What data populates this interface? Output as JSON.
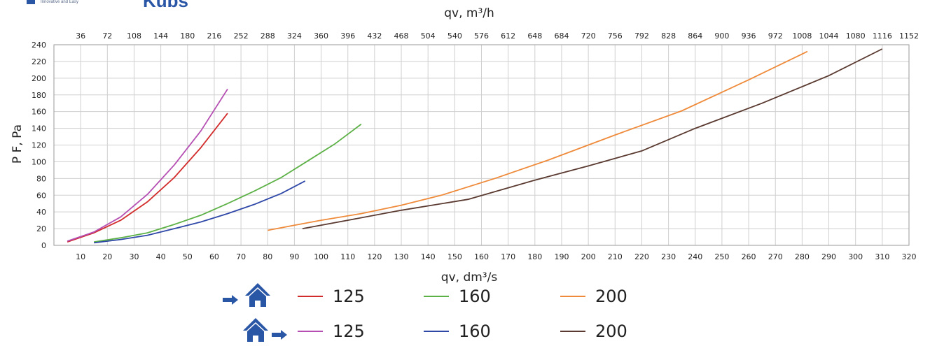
{
  "brand": {
    "tagline": "Innovative and Easy",
    "wordmark": "Kubs",
    "color": "#2a56a6"
  },
  "chart_data": {
    "type": "line",
    "xlabel": "qv, dm³/s",
    "x2label": "qv, m³/h",
    "ylabel": "P F, Pa",
    "xlim": [
      0,
      320
    ],
    "ylim": [
      0,
      240
    ],
    "x_ticks": [
      10,
      20,
      30,
      40,
      50,
      60,
      70,
      80,
      90,
      100,
      110,
      120,
      130,
      140,
      150,
      160,
      170,
      180,
      190,
      200,
      210,
      220,
      230,
      240,
      250,
      260,
      270,
      280,
      290,
      300,
      310,
      320
    ],
    "x2_ticks": [
      36,
      72,
      108,
      144,
      180,
      216,
      252,
      288,
      324,
      360,
      396,
      432,
      468,
      504,
      540,
      576,
      612,
      648,
      684,
      720,
      756,
      792,
      828,
      864,
      900,
      936,
      972,
      1008,
      1044,
      1080,
      1116,
      1152
    ],
    "y_ticks": [
      0,
      20,
      40,
      60,
      80,
      100,
      120,
      140,
      160,
      180,
      200,
      220,
      240
    ],
    "grid": true,
    "legend_placement": "bottom-center",
    "legend": [
      {
        "label": "125",
        "color": "#d22b2b",
        "direction": "supply-icon"
      },
      {
        "label": "160",
        "color": "#5cb146",
        "direction": "supply-icon"
      },
      {
        "label": "200",
        "color": "#ef8a3a",
        "direction": "supply-icon"
      },
      {
        "label": "125",
        "color": "#b54fb3",
        "direction": "extract-icon"
      },
      {
        "label": "160",
        "color": "#2f48a8",
        "direction": "extract-icon"
      },
      {
        "label": "200",
        "color": "#5a3a30",
        "direction": "extract-icon"
      }
    ],
    "series": [
      {
        "color": "#d22b2b",
        "x": [
          5,
          15,
          25,
          35,
          45,
          55,
          65
        ],
        "y": [
          4,
          15,
          30,
          52,
          81,
          117,
          158
        ]
      },
      {
        "color": "#5cb146",
        "x": [
          15,
          25,
          35,
          45,
          55,
          65,
          75,
          85,
          95,
          105,
          115
        ],
        "y": [
          4,
          9,
          15,
          25,
          36,
          50,
          65,
          81,
          101,
          121,
          145
        ]
      },
      {
        "color": "#ef8a3a",
        "x": [
          80,
          90,
          100,
          115,
          130,
          145,
          165,
          185,
          210,
          235,
          260,
          282
        ],
        "y": [
          18,
          24,
          30,
          38,
          48,
          60,
          80,
          102,
          132,
          161,
          198,
          232
        ]
      },
      {
        "color": "#b54fb3",
        "x": [
          5,
          15,
          25,
          35,
          45,
          55,
          65
        ],
        "y": [
          5,
          16,
          34,
          61,
          96,
          137,
          187
        ]
      },
      {
        "color": "#2f48a8",
        "x": [
          15,
          25,
          35,
          45,
          55,
          65,
          75,
          85,
          94
        ],
        "y": [
          3,
          7,
          12,
          20,
          28,
          38,
          49,
          62,
          77
        ]
      },
      {
        "color": "#5a3a30",
        "x": [
          93,
          110,
          130,
          155,
          180,
          200,
          220,
          240,
          265,
          290,
          310
        ],
        "y": [
          20,
          30,
          42,
          55,
          78,
          95,
          113,
          140,
          170,
          203,
          235
        ]
      }
    ]
  }
}
